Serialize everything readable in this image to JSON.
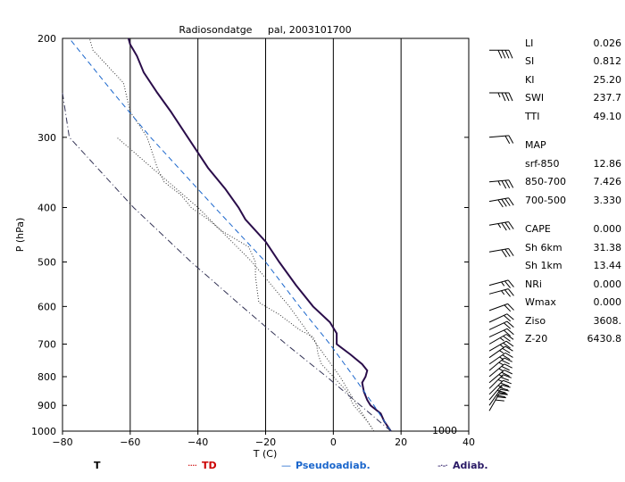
{
  "title": "Radiosondatge     pal, 2003101700",
  "xlabel": "T (C)",
  "ylabel": "P (hPa)",
  "label_1000": "1000",
  "legend": [
    {
      "name": "T",
      "symbol": "",
      "color": "#000000"
    },
    {
      "name": "TD",
      "symbol": "····",
      "color": "#cc0000"
    },
    {
      "name": "Pseudoadiab.",
      "symbol": "—",
      "color": "#1a66cc"
    },
    {
      "name": "Adiab.",
      "symbol": "-·-·",
      "color": "#2a1a66"
    }
  ],
  "indices": {
    "stability": [
      {
        "label": "LI",
        "value": "0.026"
      },
      {
        "label": "SI",
        "value": "0.812"
      },
      {
        "label": "KI",
        "value": "25.20"
      },
      {
        "label": "SWI",
        "value": "237.7"
      },
      {
        "label": "TTI",
        "value": "49.10"
      }
    ],
    "map_title": "MAP",
    "map": [
      {
        "label": "srf-850",
        "value": "12.86"
      },
      {
        "label": "850-700",
        "value": "7.426"
      },
      {
        "label": "700-500",
        "value": "3.330"
      }
    ],
    "other": [
      {
        "label": "CAPE",
        "value": "0.000"
      },
      {
        "label": "Sh 6km",
        "value": "31.38"
      },
      {
        "label": "Sh 1km",
        "value": "13.44"
      },
      {
        "label": "NRi",
        "value": "0.000"
      },
      {
        "label": "Wmax",
        "value": "0.000"
      },
      {
        "label": "Ziso",
        "value": "3608."
      },
      {
        "label": "Z-20",
        "value": "6430.8"
      }
    ]
  },
  "colors": {
    "temperature": "#2a0d4a",
    "dewpoint": "#333333",
    "pseudoadiabat": "#1a66cc",
    "adiabat": "#333355"
  },
  "chart_data": {
    "type": "line",
    "y_scale": "log-pressure",
    "xlim": [
      -80,
      40
    ],
    "ylim": [
      1000,
      200
    ],
    "x_ticks": [
      -80,
      -60,
      -40,
      -20,
      0,
      20,
      40
    ],
    "y_ticks": [
      200,
      300,
      400,
      500,
      600,
      700,
      800,
      900,
      1000
    ],
    "series": [
      {
        "name": "T",
        "points": [
          [
            1000,
            17
          ],
          [
            960,
            15
          ],
          [
            930,
            14
          ],
          [
            900,
            11
          ],
          [
            880,
            10
          ],
          [
            850,
            9
          ],
          [
            820,
            8.5
          ],
          [
            800,
            9.5
          ],
          [
            780,
            10
          ],
          [
            760,
            8.5
          ],
          [
            730,
            5
          ],
          [
            700,
            1
          ],
          [
            670,
            1
          ],
          [
            640,
            -1
          ],
          [
            600,
            -6
          ],
          [
            550,
            -11
          ],
          [
            500,
            -16
          ],
          [
            460,
            -20
          ],
          [
            420,
            -26
          ],
          [
            400,
            -28
          ],
          [
            370,
            -32
          ],
          [
            340,
            -37
          ],
          [
            300,
            -43
          ],
          [
            270,
            -48
          ],
          [
            250,
            -52
          ],
          [
            230,
            -56
          ],
          [
            215,
            -58
          ],
          [
            210,
            -59
          ],
          [
            205,
            -60
          ],
          [
            200,
            -60.5
          ]
        ]
      },
      {
        "name": "TD",
        "points": [
          [
            1000,
            12
          ],
          [
            960,
            10
          ],
          [
            900,
            6
          ],
          [
            850,
            4
          ],
          [
            800,
            0
          ],
          [
            760,
            -3.5
          ],
          [
            730,
            -4.5
          ],
          [
            700,
            -5
          ],
          [
            680,
            -6
          ],
          [
            660,
            -10
          ],
          [
            620,
            -16
          ],
          [
            590,
            -22
          ],
          [
            560,
            -22.5
          ],
          [
            530,
            -23
          ],
          [
            500,
            -23
          ],
          [
            470,
            -25
          ],
          [
            440,
            -33
          ],
          [
            420,
            -37
          ],
          [
            400,
            -42
          ],
          [
            380,
            -45
          ],
          [
            360,
            -50
          ],
          [
            340,
            -52
          ],
          [
            300,
            -55
          ],
          [
            270,
            -60
          ],
          [
            240,
            -62
          ],
          [
            210,
            -71
          ],
          [
            200,
            -72
          ]
        ]
      },
      {
        "name": "Pseudoadiab.",
        "points": [
          [
            1000,
            17
          ],
          [
            900,
            12
          ],
          [
            800,
            6
          ],
          [
            700,
            -1
          ],
          [
            600,
            -10
          ],
          [
            500,
            -20
          ],
          [
            400,
            -35
          ],
          [
            300,
            -54
          ],
          [
            250,
            -65
          ],
          [
            200,
            -78
          ]
        ]
      },
      {
        "name": "Adiab.",
        "points": [
          [
            1000,
            17
          ],
          [
            900,
            8
          ],
          [
            800,
            -2
          ],
          [
            700,
            -14
          ],
          [
            600,
            -27
          ],
          [
            500,
            -42
          ],
          [
            400,
            -59
          ],
          [
            300,
            -78
          ],
          [
            250,
            -80
          ]
        ]
      },
      {
        "name": "",
        "points": [
          [
            1000,
            12
          ],
          [
            900,
            7
          ],
          [
            800,
            2
          ],
          [
            700,
            -5
          ],
          [
            600,
            -13
          ],
          [
            500,
            -24
          ],
          [
            400,
            -40
          ],
          [
            300,
            -64
          ]
        ]
      }
    ],
    "wind_barbs": [
      {
        "p": 920,
        "dir": 210,
        "speed": 30
      },
      {
        "p": 900,
        "dir": 215,
        "speed": 30
      },
      {
        "p": 880,
        "dir": 220,
        "speed": 30
      },
      {
        "p": 860,
        "dir": 225,
        "speed": 25
      },
      {
        "p": 840,
        "dir": 225,
        "speed": 25
      },
      {
        "p": 820,
        "dir": 230,
        "speed": 25
      },
      {
        "p": 800,
        "dir": 230,
        "speed": 25
      },
      {
        "p": 780,
        "dir": 230,
        "speed": 25
      },
      {
        "p": 760,
        "dir": 235,
        "speed": 25
      },
      {
        "p": 740,
        "dir": 235,
        "speed": 25
      },
      {
        "p": 720,
        "dir": 240,
        "speed": 25
      },
      {
        "p": 700,
        "dir": 240,
        "speed": 25
      },
      {
        "p": 680,
        "dir": 245,
        "speed": 20
      },
      {
        "p": 660,
        "dir": 245,
        "speed": 20
      },
      {
        "p": 640,
        "dir": 245,
        "speed": 20
      },
      {
        "p": 610,
        "dir": 250,
        "speed": 20
      },
      {
        "p": 570,
        "dir": 255,
        "speed": 25
      },
      {
        "p": 550,
        "dir": 255,
        "speed": 25
      },
      {
        "p": 480,
        "dir": 260,
        "speed": 30
      },
      {
        "p": 430,
        "dir": 260,
        "speed": 35
      },
      {
        "p": 390,
        "dir": 260,
        "speed": 40
      },
      {
        "p": 360,
        "dir": 265,
        "speed": 35
      },
      {
        "p": 300,
        "dir": 265,
        "speed": 20
      },
      {
        "p": 250,
        "dir": 270,
        "speed": 35
      },
      {
        "p": 210,
        "dir": 270,
        "speed": 40
      }
    ]
  }
}
